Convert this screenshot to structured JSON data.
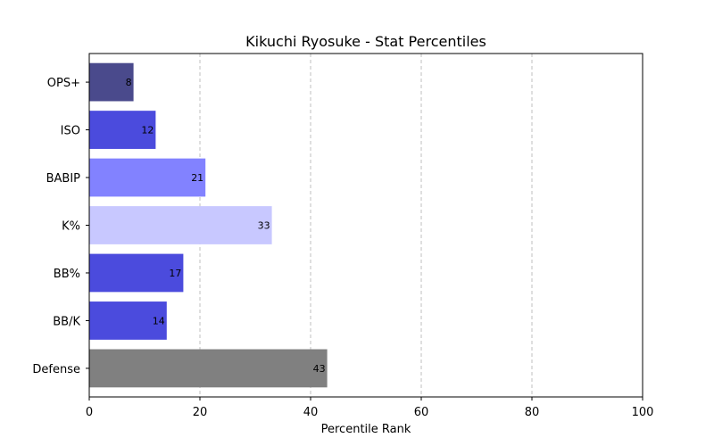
{
  "chart_data": {
    "type": "bar",
    "orientation": "horizontal",
    "title": "Kikuchi Ryosuke - Stat Percentiles",
    "xlabel": "Percentile Rank",
    "ylabel": "",
    "xlim": [
      0,
      100
    ],
    "xticks": [
      0,
      20,
      40,
      60,
      80,
      100
    ],
    "grid": "x-axis dashed",
    "categories": [
      "OPS+",
      "ISO",
      "BABIP",
      "K%",
      "BB%",
      "BB/K",
      "Defense"
    ],
    "values": [
      8,
      12,
      21,
      33,
      17,
      14,
      43
    ],
    "colors": [
      "#4a4a8c",
      "#4b4bdd",
      "#8282ff",
      "#c8c8ff",
      "#4b4bdd",
      "#4b4bdd",
      "#808080"
    ]
  }
}
